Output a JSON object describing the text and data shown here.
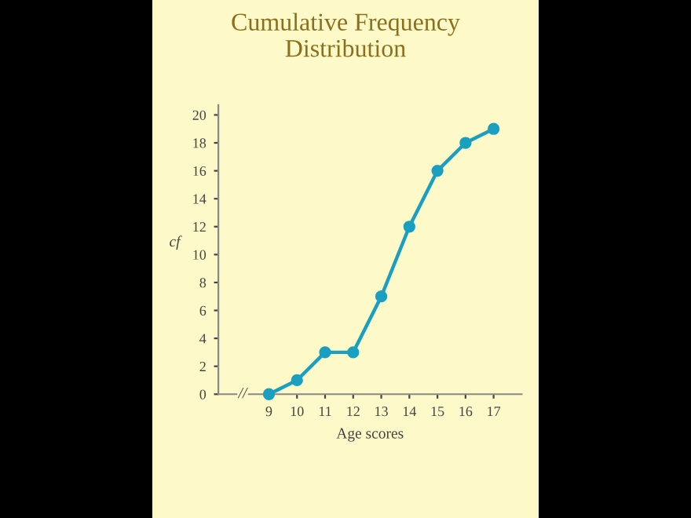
{
  "chart_data": {
    "type": "line",
    "title": "Cumulative Frequency\nDistribution",
    "xlabel": "Age scores",
    "ylabel": "cf",
    "x": [
      9,
      10,
      11,
      12,
      13,
      14,
      15,
      16,
      17
    ],
    "series": [
      {
        "color": "#1a9fc0",
        "values": [
          0,
          1,
          3,
          3,
          7,
          12,
          16,
          18,
          19
        ]
      }
    ],
    "xlim": [
      7.2,
      18
    ],
    "xticks": [
      9,
      10,
      11,
      12,
      13,
      14,
      15,
      16,
      17
    ],
    "ylim": [
      0,
      20.7
    ],
    "yticks": [
      0,
      2,
      4,
      6,
      8,
      10,
      12,
      14,
      16,
      18,
      20
    ],
    "annotations": [
      "//"
    ],
    "marker": "circle",
    "line_style": "solid",
    "grid": false,
    "legend": false
  }
}
